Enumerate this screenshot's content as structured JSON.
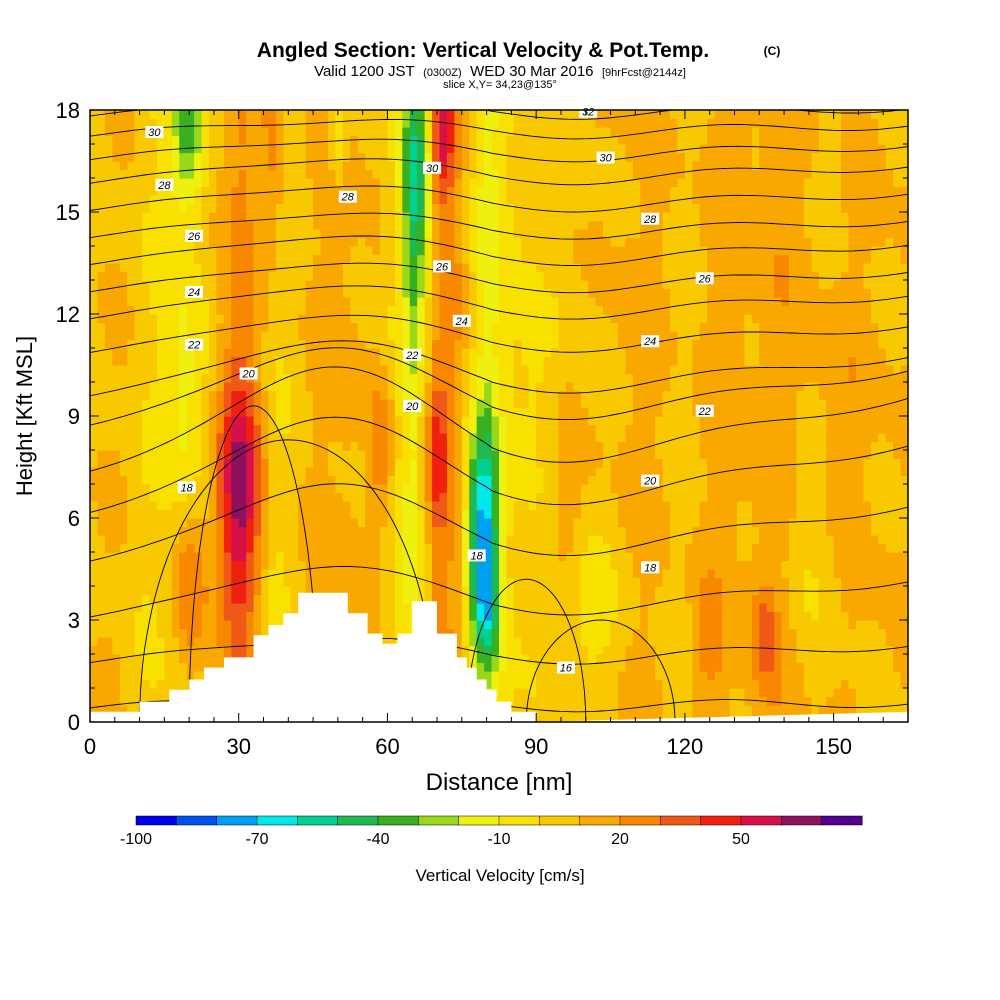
{
  "header": {
    "title": "Angled Section: Vertical Velocity & Pot.Temp.",
    "title_unit": "(C)",
    "valid_prefix": "Valid 1200 JST",
    "valid_utc": "(0300Z)",
    "valid_date": "WED 30 Mar 2016",
    "forecast": "[9hrFcst@2144z]",
    "slice": "slice X,Y= 34,23@135°"
  },
  "chart_data": {
    "type": "heatmap",
    "xlabel": "Distance [nm]",
    "ylabel": "Height [Kft MSL]",
    "xlim": [
      0,
      165
    ],
    "ylim": [
      0,
      18
    ],
    "x_ticks": [
      0,
      30,
      60,
      90,
      120,
      150
    ],
    "y_ticks": [
      0,
      3,
      6,
      9,
      12,
      15,
      18
    ],
    "grid": false,
    "colorbar": {
      "label": "Vertical Velocity [cm/s]",
      "placement": "bottom",
      "tick_labels": [
        "-100",
        "-70",
        "-40",
        "-10",
        "20",
        "50"
      ],
      "levels": [
        -100,
        -90,
        -80,
        -70,
        -60,
        -50,
        -40,
        -30,
        -20,
        -10,
        0,
        10,
        20,
        30,
        40,
        50,
        60,
        70
      ],
      "colors": [
        "#0000f0",
        "#0050f0",
        "#00a0f0",
        "#00e8e8",
        "#00d090",
        "#20b850",
        "#38b020",
        "#98d818",
        "#f0f010",
        "#f8e000",
        "#f8c800",
        "#f8a800",
        "#f88800",
        "#f05818",
        "#f02010",
        "#d81048",
        "#901060",
        "#500090"
      ]
    },
    "field_profile": {
      "description_levels": "vertical velocity at sample columns (cm/s)",
      "x": [
        0,
        8,
        18,
        25,
        30,
        37,
        45,
        52,
        58,
        65,
        70,
        74,
        80,
        85,
        92,
        100,
        108,
        118,
        128,
        138,
        150,
        160,
        165
      ],
      "core_values": [
        10,
        6,
        -15,
        18,
        45,
        -5,
        12,
        25,
        8,
        -35,
        40,
        30,
        -40,
        -12,
        14,
        2,
        22,
        10,
        20,
        28,
        8,
        18,
        12
      ]
    },
    "contours": {
      "quantity": "Pot.Temp.",
      "levels": [
        16,
        18,
        20,
        22,
        24,
        26,
        28,
        30,
        32
      ],
      "labels": [
        {
          "text": "30",
          "x": 13,
          "y": 17.35
        },
        {
          "text": "28",
          "x": 15,
          "y": 15.8
        },
        {
          "text": "26",
          "x": 21,
          "y": 14.3
        },
        {
          "text": "24",
          "x": 21,
          "y": 12.65
        },
        {
          "text": "22",
          "x": 21,
          "y": 11.1
        },
        {
          "text": "20",
          "x": 32,
          "y": 10.25
        },
        {
          "text": "18",
          "x": 19.5,
          "y": 6.9
        },
        {
          "text": "28",
          "x": 52,
          "y": 15.45
        },
        {
          "text": "30",
          "x": 69,
          "y": 16.3
        },
        {
          "text": "26",
          "x": 71,
          "y": 13.4
        },
        {
          "text": "24",
          "x": 75,
          "y": 11.8
        },
        {
          "text": "22",
          "x": 65,
          "y": 10.8
        },
        {
          "text": "20",
          "x": 65,
          "y": 9.3
        },
        {
          "text": "18",
          "x": 78,
          "y": 4.9
        },
        {
          "text": "16",
          "x": 96,
          "y": 1.6
        },
        {
          "text": "32",
          "x": 100.5,
          "y": 17.95
        },
        {
          "text": "30",
          "x": 104,
          "y": 16.6
        },
        {
          "text": "28",
          "x": 113,
          "y": 14.8
        },
        {
          "text": "26",
          "x": 124,
          "y": 13.05
        },
        {
          "text": "24",
          "x": 113,
          "y": 11.2
        },
        {
          "text": "22",
          "x": 124,
          "y": 9.15
        },
        {
          "text": "20",
          "x": 113,
          "y": 7.1
        },
        {
          "text": "18",
          "x": 113,
          "y": 4.55
        }
      ]
    },
    "terrain": {
      "x": [
        0,
        10,
        10,
        16,
        16,
        20,
        20,
        23,
        23,
        27,
        27,
        33,
        33,
        36,
        36,
        39,
        39,
        42,
        42,
        45,
        45,
        52,
        52,
        56,
        56,
        59,
        59,
        62,
        62,
        65,
        65,
        70,
        70,
        74,
        74,
        76,
        76,
        78,
        78,
        80,
        80,
        82,
        82,
        85,
        85,
        90,
        90
      ],
      "h": [
        0.3,
        0.3,
        0.6,
        0.6,
        0.95,
        0.95,
        1.25,
        1.25,
        1.6,
        1.6,
        1.9,
        1.9,
        2.55,
        2.55,
        2.85,
        2.85,
        3.2,
        3.2,
        3.8,
        3.8,
        3.8,
        3.8,
        3.2,
        3.2,
        2.6,
        2.6,
        2.3,
        2.3,
        2.6,
        2.6,
        3.55,
        3.55,
        2.6,
        2.6,
        1.9,
        1.9,
        1.6,
        1.6,
        1.25,
        1.25,
        0.95,
        0.95,
        0.6,
        0.6,
        0.3,
        0.3,
        0
      ]
    }
  }
}
